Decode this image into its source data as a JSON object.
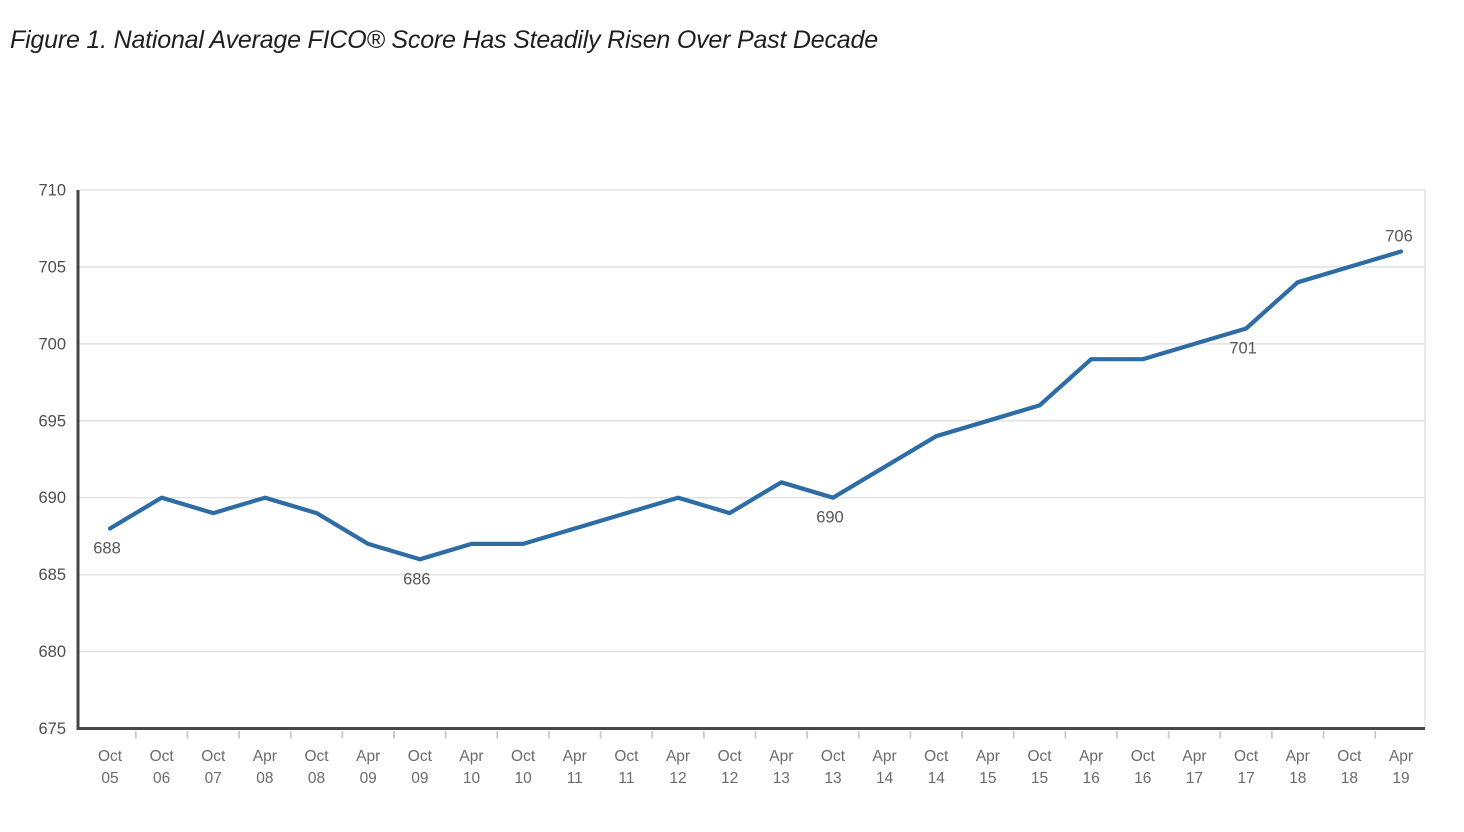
{
  "chart_data": {
    "type": "line",
    "title": "Figure 1. National Average FICO® Score Has Steadily Risen Over Past Decade",
    "categories": [
      "Oct 05",
      "Oct 06",
      "Oct 07",
      "Apr 08",
      "Oct 08",
      "Apr 09",
      "Oct 09",
      "Apr 10",
      "Oct 10",
      "Apr 11",
      "Oct 11",
      "Apr 12",
      "Oct 12",
      "Apr 13",
      "Oct 13",
      "Apr 14",
      "Oct 14",
      "Apr 15",
      "Oct 15",
      "Apr 16",
      "Oct 16",
      "Apr 17",
      "Oct 17",
      "Apr 18",
      "Oct 18",
      "Apr 19"
    ],
    "series": [
      {
        "name": "National Average FICO Score",
        "values": [
          688,
          690,
          689,
          690,
          689,
          687,
          686,
          687,
          687,
          688,
          689,
          690,
          689,
          691,
          690,
          692,
          694,
          695,
          696,
          699,
          699,
          700,
          701,
          704,
          705,
          706
        ]
      }
    ],
    "xlabel": "",
    "ylabel": "",
    "ylim": [
      675,
      710
    ],
    "yticks": [
      675,
      680,
      685,
      690,
      695,
      700,
      705,
      710
    ],
    "grid": true,
    "legend": "none",
    "point_labels": [
      {
        "index": 0,
        "text": "688",
        "placement": "below"
      },
      {
        "index": 6,
        "text": "686",
        "placement": "below"
      },
      {
        "index": 14,
        "text": "690",
        "placement": "below"
      },
      {
        "index": 22,
        "text": "701",
        "placement": "below"
      },
      {
        "index": 25,
        "text": "706",
        "placement": "above"
      }
    ],
    "colors": {
      "line": "#2d6ca4",
      "grid": "#e4e4e4",
      "axis": "#474747",
      "tick": "#c9c9c9",
      "axis_label": "#6b6b6b",
      "y_label": "#4e4e4e",
      "value_label": "#585858",
      "title": "#1f1f1f",
      "background": "#ffffff"
    }
  }
}
